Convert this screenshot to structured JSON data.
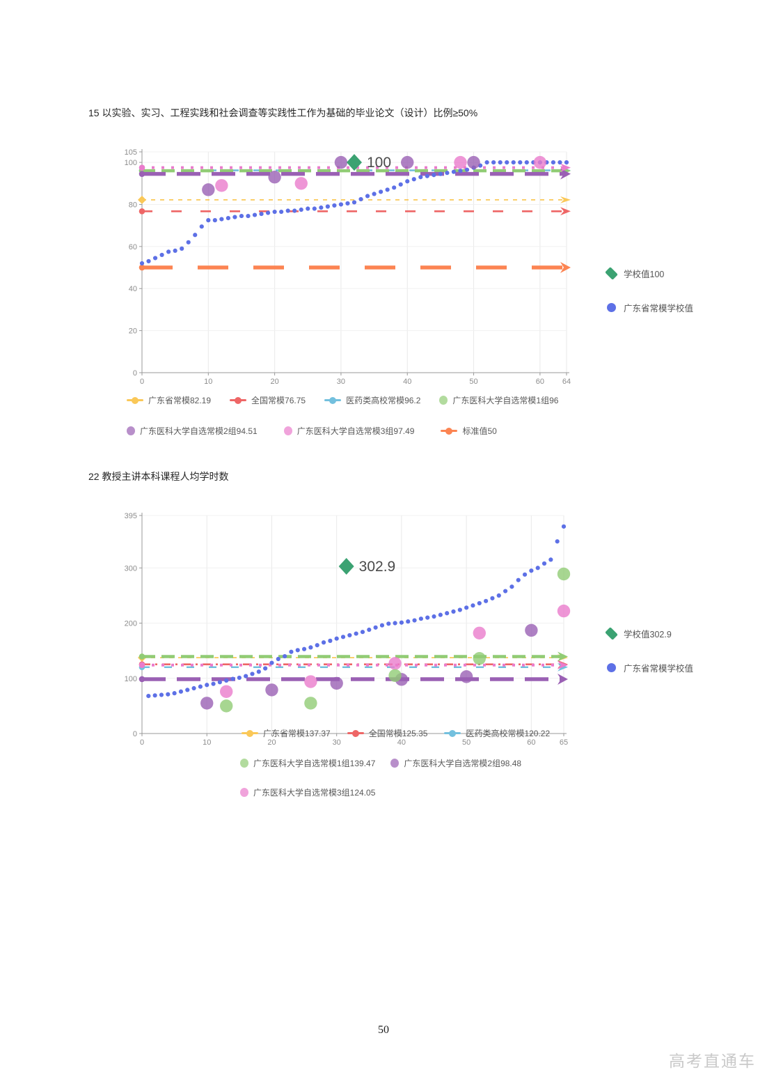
{
  "page": {
    "number": "50",
    "watermark": "高考直通车"
  },
  "sections": [
    {
      "title": "15 以实验、实习、工程实践和社会调查等实践性工作为基础的毕业论文（设计）比例≥50%",
      "side_legend": [
        {
          "marker": "diamond",
          "color": "#3ba272",
          "label": "学校值100"
        },
        {
          "marker": "circle",
          "color": "#5d70e6",
          "label": "广东省常模学校值"
        }
      ],
      "bottom_legend_rows": [
        [
          {
            "marker": "line",
            "color": "#fac858",
            "label": "广东省常模82.19"
          },
          {
            "marker": "line",
            "color": "#ee6666",
            "label": "全国常模76.75"
          },
          {
            "marker": "line",
            "color": "#73c0de",
            "label": "医药类高校常模96.2"
          },
          {
            "marker": "circle",
            "color": "#91cc75",
            "label": "广东医科大学自选常模1组96"
          }
        ],
        [
          {
            "marker": "circle",
            "color": "#9a60b4",
            "label": "广东医科大学自选常模2组94.51"
          },
          {
            "marker": "circle",
            "color": "#ea7ccc",
            "label": "广东医科大学自选常模3组97.49"
          },
          {
            "marker": "line",
            "color": "#fc8452",
            "label": "标准值50"
          }
        ]
      ]
    },
    {
      "title": "22 教授主讲本科课程人均学时数",
      "side_legend": [
        {
          "marker": "diamond",
          "color": "#3ba272",
          "label": "学校值302.9"
        },
        {
          "marker": "circle",
          "color": "#5d70e6",
          "label": "广东省常模学校值"
        }
      ],
      "bottom_legend_rows": [
        [
          {
            "marker": "line",
            "color": "#fac858",
            "label": "广东省常模137.37"
          },
          {
            "marker": "line",
            "color": "#ee6666",
            "label": "全国常模125.35"
          },
          {
            "marker": "line",
            "color": "#73c0de",
            "label": "医药类高校常模120.22"
          }
        ],
        [
          {
            "marker": "circle",
            "color": "#91cc75",
            "label": "广东医科大学自选常模1组139.47"
          },
          {
            "marker": "circle",
            "color": "#9a60b4",
            "label": "广东医科大学自选常模2组98.48"
          }
        ],
        [
          {
            "marker": "circle",
            "color": "#ea7ccc",
            "label": "广东医科大学自选常模3组124.05"
          }
        ]
      ]
    }
  ],
  "chart_data": [
    {
      "type": "scatter",
      "title": "15 以实验、实习、工程实践和社会调查等实践性工作为基础的毕业论文（设计）比例≥50%",
      "xlabel": "",
      "ylabel": "",
      "xlim": [
        0,
        64
      ],
      "ylim": [
        0,
        105
      ],
      "x_ticks": [
        0,
        10,
        20,
        30,
        40,
        50,
        60,
        64
      ],
      "y_ticks": [
        0,
        20,
        40,
        60,
        80,
        100,
        105
      ],
      "grid": true,
      "legend_position": "right",
      "school_value": {
        "name": "学校值",
        "x": 32,
        "y": 100,
        "label": "100",
        "color": "#3ba272"
      },
      "normal_series": {
        "name": "广东省常模学校值",
        "color": "#5d70e6",
        "x_start": 0,
        "y": [
          52,
          53,
          54.5,
          56,
          57.5,
          58,
          59,
          62,
          65.5,
          69.5,
          72.5,
          72.5,
          73,
          73.5,
          74,
          74.5,
          74.5,
          75,
          75.5,
          76,
          76.5,
          76.5,
          77,
          77,
          77.5,
          78,
          78,
          78.5,
          79,
          79.5,
          80,
          80.5,
          81,
          82.5,
          84,
          85,
          86,
          87,
          88,
          89.5,
          91,
          92,
          93,
          93.5,
          94,
          94.5,
          95,
          95.5,
          96,
          96.5,
          97.5,
          98.5,
          100,
          100,
          100,
          100,
          100,
          100,
          100,
          100,
          100,
          100,
          100,
          100,
          100
        ]
      },
      "hlines": [
        {
          "name": "广东省常模",
          "value": 82.19,
          "color": "#fac858",
          "style": "thin-dash"
        },
        {
          "name": "全国常模",
          "value": 76.75,
          "color": "#ee6666",
          "style": "sparse-dash"
        },
        {
          "name": "医药类高校常模",
          "value": 96.2,
          "color": "#73c0de",
          "style": "mid-dash"
        },
        {
          "name": "广东医科大学自选常模1组",
          "value": 96,
          "color": "#91cc75",
          "style": "heavy-dash"
        },
        {
          "name": "广东医科大学自选常模2组",
          "value": 94.51,
          "color": "#9a60b4",
          "style": "long-dash"
        },
        {
          "name": "广东医科大学自选常模3组",
          "value": 97.49,
          "color": "#ea7ccc",
          "style": "dot-dash"
        },
        {
          "name": "标准值",
          "value": 50,
          "color": "#fc8452",
          "style": "xlong-dash"
        }
      ],
      "bubbles": [
        {
          "name": "广东医科大学自选常模2组",
          "color": "#9a60b4",
          "points": [
            [
              10,
              87
            ],
            [
              20,
              93
            ],
            [
              30,
              100
            ],
            [
              40,
              100
            ],
            [
              50,
              100
            ]
          ]
        },
        {
          "name": "广东医科大学自选常模3组",
          "color": "#ea7ccc",
          "points": [
            [
              12,
              89
            ],
            [
              24,
              90
            ],
            [
              48,
              100
            ],
            [
              60,
              100
            ]
          ]
        }
      ]
    },
    {
      "type": "scatter",
      "title": "22 教授主讲本科课程人均学时数",
      "xlabel": "",
      "ylabel": "",
      "xlim": [
        0,
        65
      ],
      "ylim": [
        0,
        395
      ],
      "x_ticks": [
        0,
        10,
        20,
        30,
        40,
        50,
        60,
        65
      ],
      "y_ticks": [
        0,
        100,
        200,
        300,
        395
      ],
      "grid": true,
      "legend_position": "right",
      "school_value": {
        "name": "学校值",
        "x": 31.5,
        "y": 302.9,
        "label": "302.9",
        "color": "#3ba272"
      },
      "normal_series": {
        "name": "广东省常模学校值",
        "color": "#5d70e6",
        "x_start": 1,
        "y": [
          68,
          69,
          70,
          71,
          73,
          76,
          79,
          82,
          85,
          88,
          90,
          93,
          96,
          99,
          101,
          104,
          108,
          112,
          118,
          128,
          135,
          140,
          148,
          151,
          153,
          156,
          160,
          165,
          168,
          172,
          175,
          178,
          181,
          184,
          188,
          192,
          196,
          199,
          200,
          201,
          203,
          205,
          208,
          210,
          212,
          215,
          218,
          221,
          224,
          228,
          232,
          236,
          240,
          245,
          250,
          258,
          266,
          278,
          288,
          295,
          300,
          308,
          315,
          348,
          375
        ]
      },
      "hlines": [
        {
          "name": "广东省常模",
          "value": 137.37,
          "color": "#fac858",
          "style": "thin-dash"
        },
        {
          "name": "全国常模",
          "value": 125.35,
          "color": "#ee6666",
          "style": "dash-dot"
        },
        {
          "name": "医药类高校常模",
          "value": 120.22,
          "color": "#73c0de",
          "style": "mid-dash"
        },
        {
          "name": "广东医科大学自选常模1组",
          "value": 139.47,
          "color": "#91cc75",
          "style": "heavy-dash"
        },
        {
          "name": "广东医科大学自选常模2组",
          "value": 98.48,
          "color": "#9a60b4",
          "style": "long-dash"
        },
        {
          "name": "广东医科大学自选常模3组",
          "value": 124.05,
          "color": "#ea7ccc",
          "style": "dot-dash"
        }
      ],
      "bubbles": [
        {
          "name": "广东医科大学自选常模2组",
          "color": "#9a60b4",
          "points": [
            [
              10,
              55
            ],
            [
              20,
              79
            ],
            [
              30,
              91
            ],
            [
              40,
              98
            ],
            [
              50,
              103
            ],
            [
              60,
              187
            ]
          ]
        },
        {
          "name": "广东医科大学自选常模3组",
          "color": "#ea7ccc",
          "points": [
            [
              13,
              76
            ],
            [
              26,
              94
            ],
            [
              39,
              127
            ],
            [
              52,
              182
            ],
            [
              65,
              222
            ]
          ]
        },
        {
          "name": "广东医科大学自选常模1组",
          "color": "#91cc75",
          "points": [
            [
              13,
              50
            ],
            [
              26,
              55
            ],
            [
              39,
              105
            ],
            [
              52,
              136
            ],
            [
              65,
              289
            ]
          ]
        }
      ]
    }
  ]
}
